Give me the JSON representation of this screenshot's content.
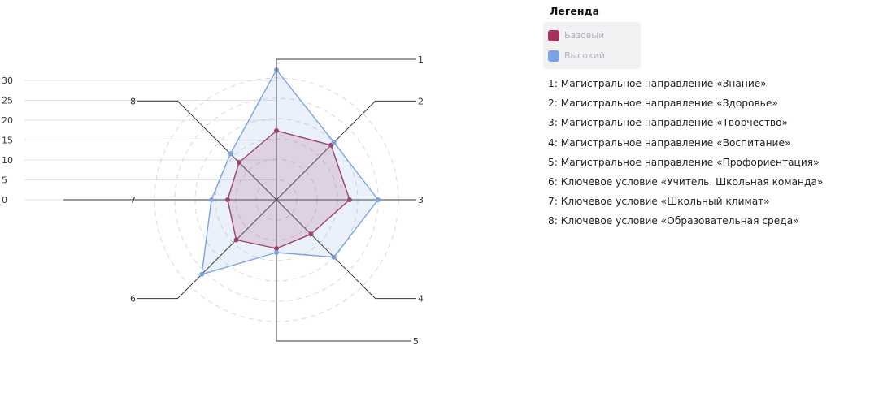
{
  "chart_data": {
    "type": "radar",
    "axes": [
      "1",
      "2",
      "3",
      "4",
      "5",
      "6",
      "7",
      "8"
    ],
    "r_ticks": [
      0,
      5,
      10,
      15,
      20,
      25,
      30
    ],
    "rlim": [
      0,
      30
    ],
    "grid": true,
    "legend_position": "top-right",
    "series": [
      {
        "name": "Базовый",
        "color": "#a4325f",
        "values": [
          17,
          19,
          18,
          12,
          12,
          14,
          12,
          13
        ]
      },
      {
        "name": "Высокий",
        "color": "#7aa3e5",
        "values": [
          32,
          20,
          25,
          20,
          13,
          26,
          16,
          16
        ]
      }
    ]
  },
  "legend": {
    "title": "Легенда"
  },
  "axis_descriptions": [
    "1: Магистральное направление «Знание»",
    "2: Магистральное направление «Здоровье»",
    "3: Магистральное направление «Творчество»",
    "4: Магистральное направление «Воспитание»",
    "5: Магистральное направление «Профориентация»",
    "6: Ключевое условие «Учитель. Школьная команда»",
    "7: Ключевое условие «Школьный климат»",
    "8: Ключевое условие «Образовательная среда»"
  ]
}
